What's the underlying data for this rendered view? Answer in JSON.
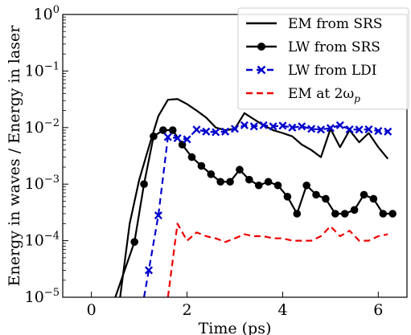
{
  "chart_data": {
    "type": "line",
    "xlabel": "Time (ps)",
    "ylabel": "Energy in waves / Energy in laser",
    "xlim": [
      -0.6,
      6.6
    ],
    "ylim": [
      1e-05,
      1
    ],
    "yscale": "log",
    "x_ticks": [
      {
        "value": 0,
        "label": "0"
      },
      {
        "value": 2,
        "label": "2"
      },
      {
        "value": 4,
        "label": "4"
      },
      {
        "value": 6,
        "label": "6"
      }
    ],
    "y_ticks": [
      {
        "exp": -5,
        "base": "10",
        "sup": "−5"
      },
      {
        "exp": -4,
        "base": "10",
        "sup": "−4"
      },
      {
        "exp": -3,
        "base": "10",
        "sup": "−3"
      },
      {
        "exp": -2,
        "base": "10",
        "sup": "−2"
      },
      {
        "exp": -1,
        "base": "10",
        "sup": "−1"
      },
      {
        "exp": 0,
        "base": "10",
        "sup": "0"
      }
    ],
    "legend_position": "top-right",
    "series": [
      {
        "name": "EM from SRS",
        "color": "#000000",
        "dash": "solid",
        "marker": "none",
        "x": [
          0.6,
          0.8,
          1.0,
          1.2,
          1.4,
          1.6,
          1.8,
          2.0,
          2.2,
          2.4,
          2.6,
          2.8,
          3.0,
          3.2,
          3.4,
          3.6,
          3.8,
          4.0,
          4.2,
          4.4,
          4.6,
          4.8,
          5.0,
          5.2,
          5.4,
          5.6,
          5.8,
          6.0,
          6.2
        ],
        "y": [
          1e-05,
          0.0002,
          0.0012,
          0.0045,
          0.016,
          0.031,
          0.032,
          0.026,
          0.02,
          0.015,
          0.01,
          0.009,
          0.0095,
          0.018,
          0.014,
          0.011,
          0.009,
          0.008,
          0.007,
          0.005,
          0.004,
          0.003,
          0.0095,
          0.0045,
          0.009,
          0.0055,
          0.008,
          0.0045,
          0.0028
        ]
      },
      {
        "name": "LW from SRS",
        "color": "#000000",
        "dash": "solid",
        "marker": "circle",
        "x": [
          0.5,
          0.9,
          1.1,
          1.3,
          1.5,
          1.7,
          1.9,
          2.1,
          2.3,
          2.5,
          2.7,
          2.9,
          3.1,
          3.3,
          3.5,
          3.7,
          3.9,
          4.1,
          4.3,
          4.5,
          4.7,
          4.9,
          5.1,
          5.3,
          5.5,
          5.7,
          5.9,
          6.1,
          6.3
        ],
        "y": [
          1e-05,
          9.5e-05,
          0.001,
          0.007,
          0.009,
          0.009,
          0.005,
          0.003,
          0.0021,
          0.0015,
          0.0011,
          0.0011,
          0.0018,
          0.0012,
          0.00095,
          0.0011,
          0.00095,
          0.0006,
          0.0003,
          0.00095,
          0.00065,
          0.00055,
          0.0003,
          0.0003,
          0.00035,
          0.00065,
          0.00055,
          0.0003,
          0.0003
        ]
      },
      {
        "name": "LW from LDI",
        "color": "#0000cc",
        "dash": "dashed",
        "marker": "x",
        "x": [
          1.1,
          1.2,
          1.4,
          1.6,
          1.8,
          2.0,
          2.2,
          2.4,
          2.6,
          2.8,
          3.0,
          3.2,
          3.4,
          3.6,
          3.8,
          4.0,
          4.2,
          4.4,
          4.6,
          4.8,
          5.0,
          5.2,
          5.4,
          5.6,
          5.8,
          6.0,
          6.2
        ],
        "y": [
          1e-05,
          3e-05,
          0.00028,
          0.0068,
          0.0065,
          0.0062,
          0.0092,
          0.0085,
          0.0083,
          0.0085,
          0.0095,
          0.011,
          0.0105,
          0.011,
          0.0105,
          0.0108,
          0.01,
          0.0105,
          0.0095,
          0.0092,
          0.0098,
          0.011,
          0.0093,
          0.0092,
          0.0093,
          0.0087,
          0.0085
        ]
      },
      {
        "name": "EM at 2ω",
        "name_sub": "p",
        "color": "#ee0000",
        "dash": "dashed",
        "marker": "none",
        "x": [
          1.6,
          1.8,
          2.0,
          2.2,
          2.4,
          2.6,
          2.8,
          3.0,
          3.2,
          3.4,
          3.6,
          3.8,
          4.0,
          4.2,
          4.4,
          4.6,
          4.8,
          5.0,
          5.2,
          5.4,
          5.6,
          5.8,
          6.0,
          6.2
        ],
        "y": [
          1e-05,
          0.0002,
          0.0001,
          0.00014,
          0.00012,
          0.00011,
          9.5e-05,
          0.00011,
          0.00013,
          0.00012,
          0.00012,
          0.00011,
          0.00011,
          0.0001,
          0.0001,
          0.0001,
          0.00012,
          0.00018,
          0.00012,
          0.00015,
          0.0001,
          0.0001,
          0.00012,
          0.00013
        ]
      }
    ]
  }
}
